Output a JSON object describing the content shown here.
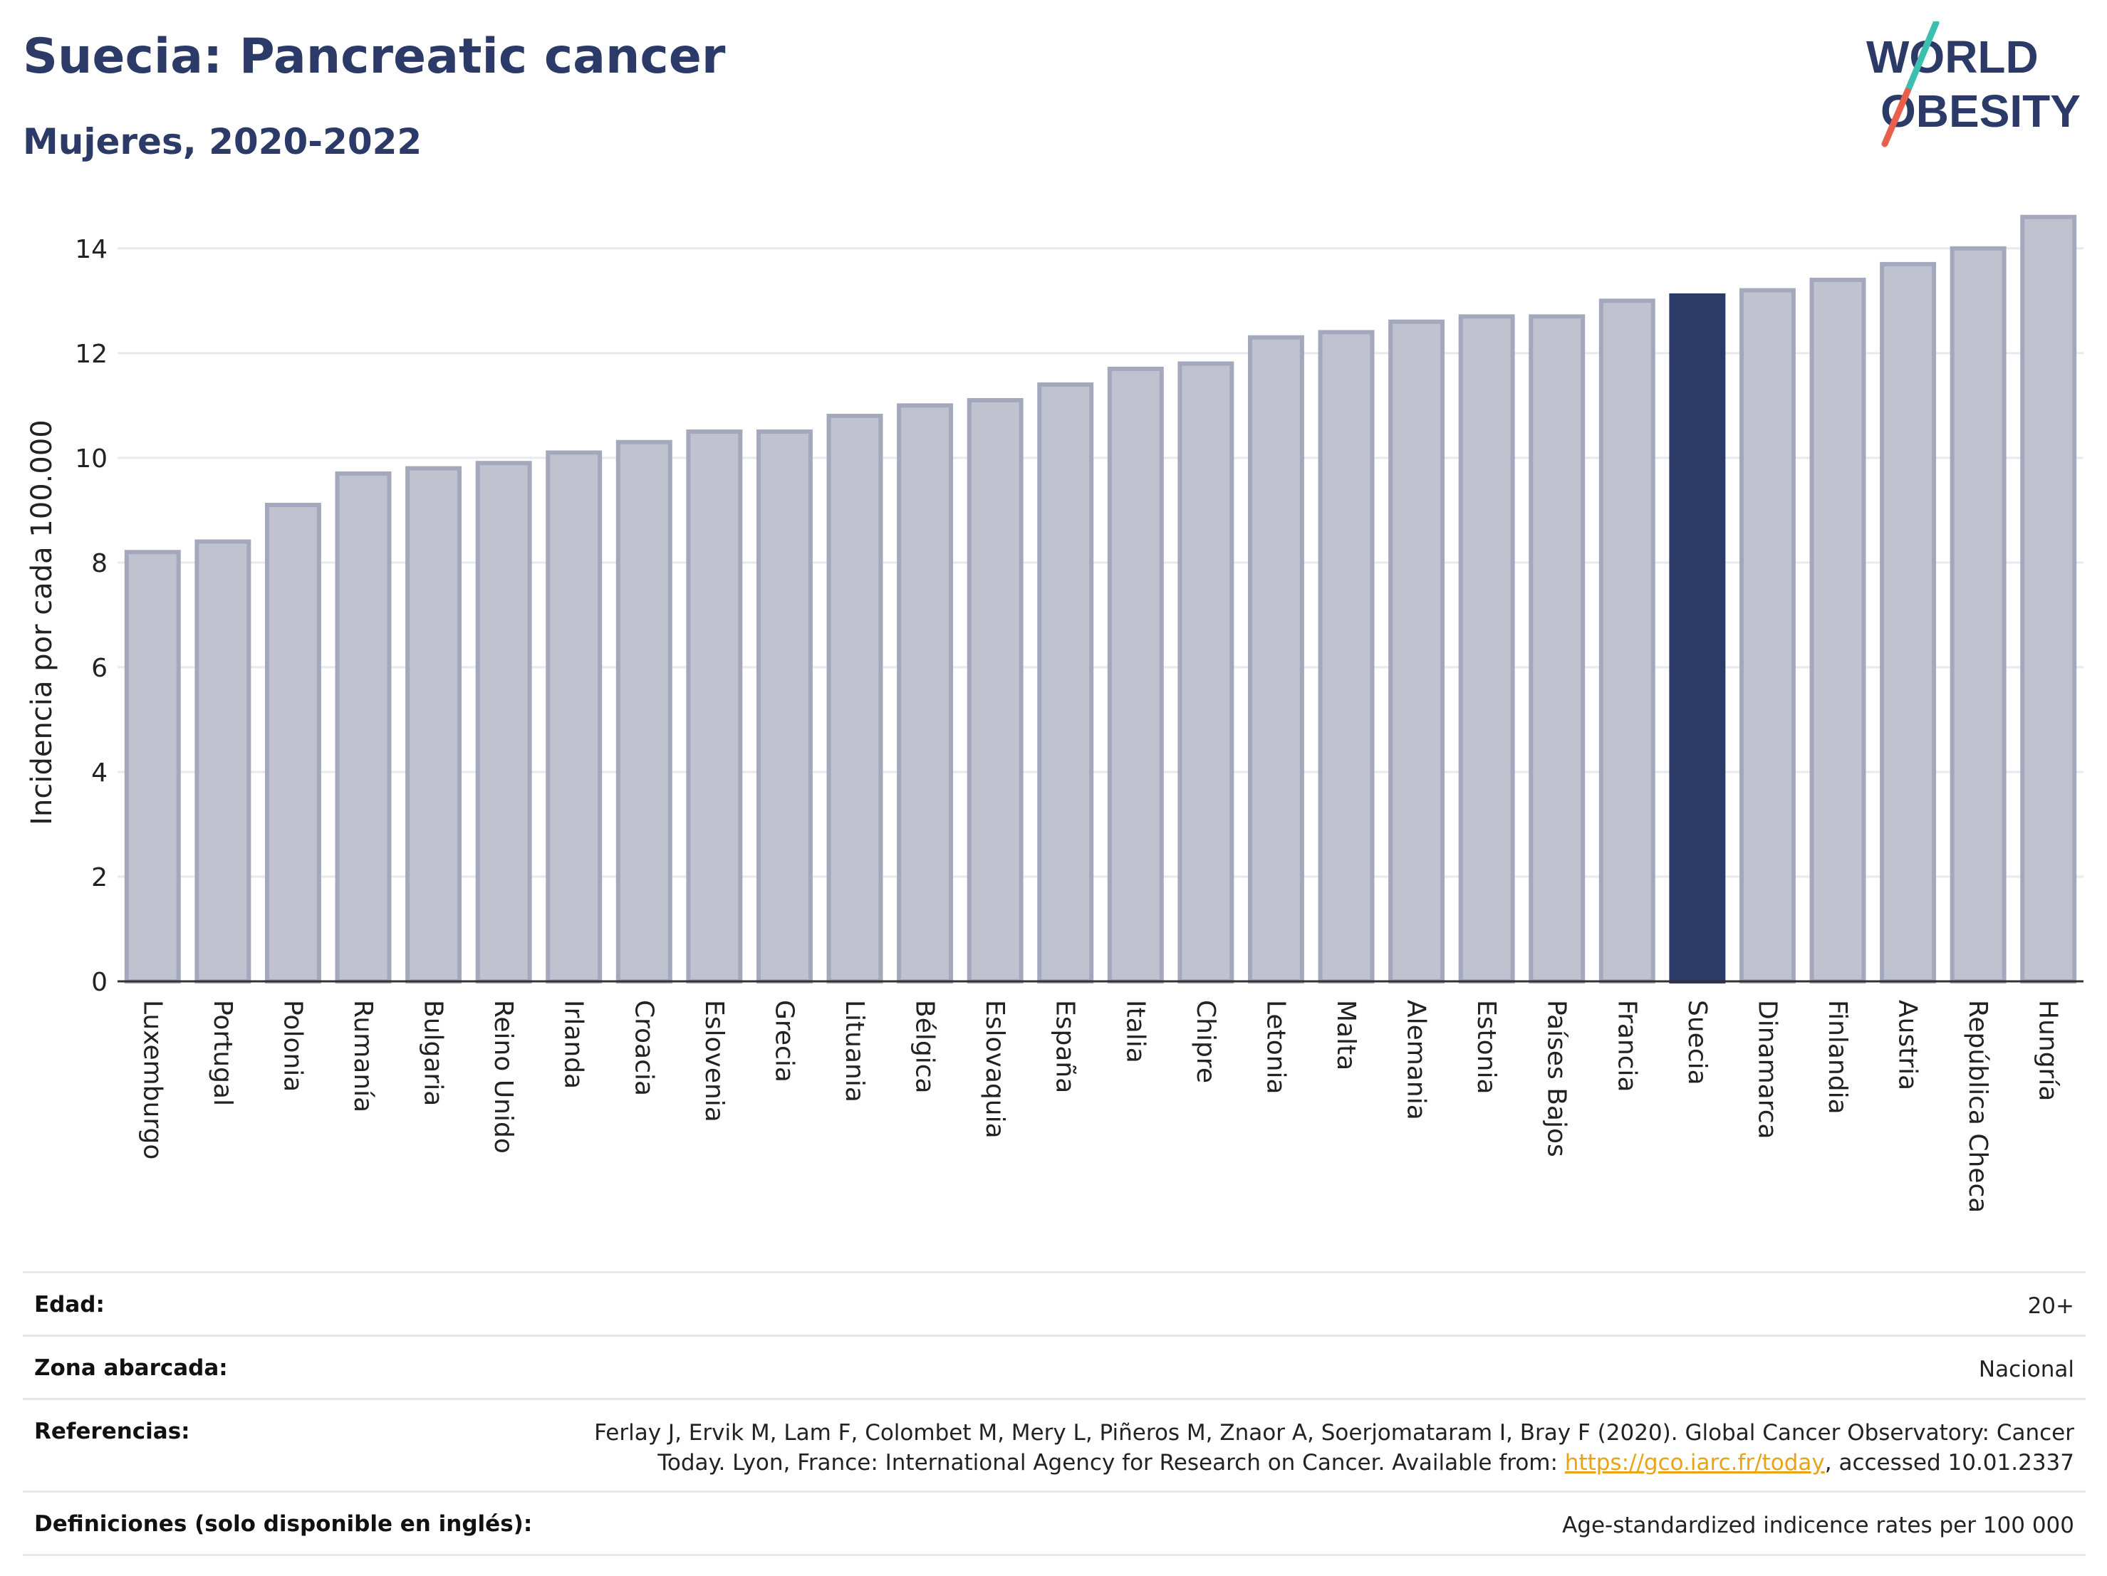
{
  "header": {
    "title": "Suecia: Pancreatic cancer",
    "subtitle": "Mujeres, 2020-2022"
  },
  "logo": {
    "line1": "WORLD",
    "line2": "OBESITY",
    "slash_colors": [
      "#3cbfb0",
      "#e8604c"
    ],
    "text_color": "#2b3a67"
  },
  "colors": {
    "bar_default": "#c0c3cf",
    "bar_stroke": "#a3a8bc",
    "bar_highlight": "#2b3a67",
    "grid": "#e8e9ee",
    "axis": "#333333"
  },
  "chart_data": {
    "type": "bar",
    "ylabel": "Incidencia por cada 100.000",
    "ylim": [
      0,
      14.8
    ],
    "yticks": [
      0,
      2,
      4,
      6,
      8,
      10,
      12,
      14
    ],
    "grid": true,
    "highlight": "Suecia",
    "categories": [
      "Luxemburgo",
      "Portugal",
      "Polonia",
      "Rumanía",
      "Bulgaria",
      "Reino Unido",
      "Irlanda",
      "Croacia",
      "Eslovenia",
      "Grecia",
      "Lituania",
      "Bélgica",
      "Eslovaquia",
      "España",
      "Italia",
      "Chipre",
      "Letonia",
      "Malta",
      "Alemania",
      "Estonia",
      "Países Bajos",
      "Francia",
      "Suecia",
      "Dinamarca",
      "Finlandia",
      "Austria",
      "República Checa",
      "Hungría"
    ],
    "values": [
      8.2,
      8.4,
      9.1,
      9.7,
      9.8,
      9.9,
      10.1,
      10.3,
      10.5,
      10.5,
      10.8,
      11.0,
      11.1,
      11.4,
      11.7,
      11.8,
      12.3,
      12.4,
      12.6,
      12.7,
      12.7,
      13.0,
      13.1,
      13.2,
      13.4,
      13.7,
      14.0,
      14.6
    ]
  },
  "meta": {
    "rows": [
      {
        "label": "Edad:",
        "value": "20+"
      },
      {
        "label": "Zona abarcada:",
        "value": "Nacional"
      },
      {
        "label": "Referencias:",
        "value_pre": "Ferlay J, Ervik M, Lam F, Colombet M, Mery L, Piñeros M, Znaor A, Soerjomataram I, Bray F (2020). Global Cancer Observatory: Cancer Today. Lyon, France: International Agency for Research on Cancer. Available from: ",
        "link": "https://gco.iarc.fr/today",
        "value_post": ", accessed 10.01.2337"
      },
      {
        "label": "Definiciones (solo disponible en inglés):",
        "value": "Age-standardized indicence rates per 100 000"
      }
    ]
  }
}
